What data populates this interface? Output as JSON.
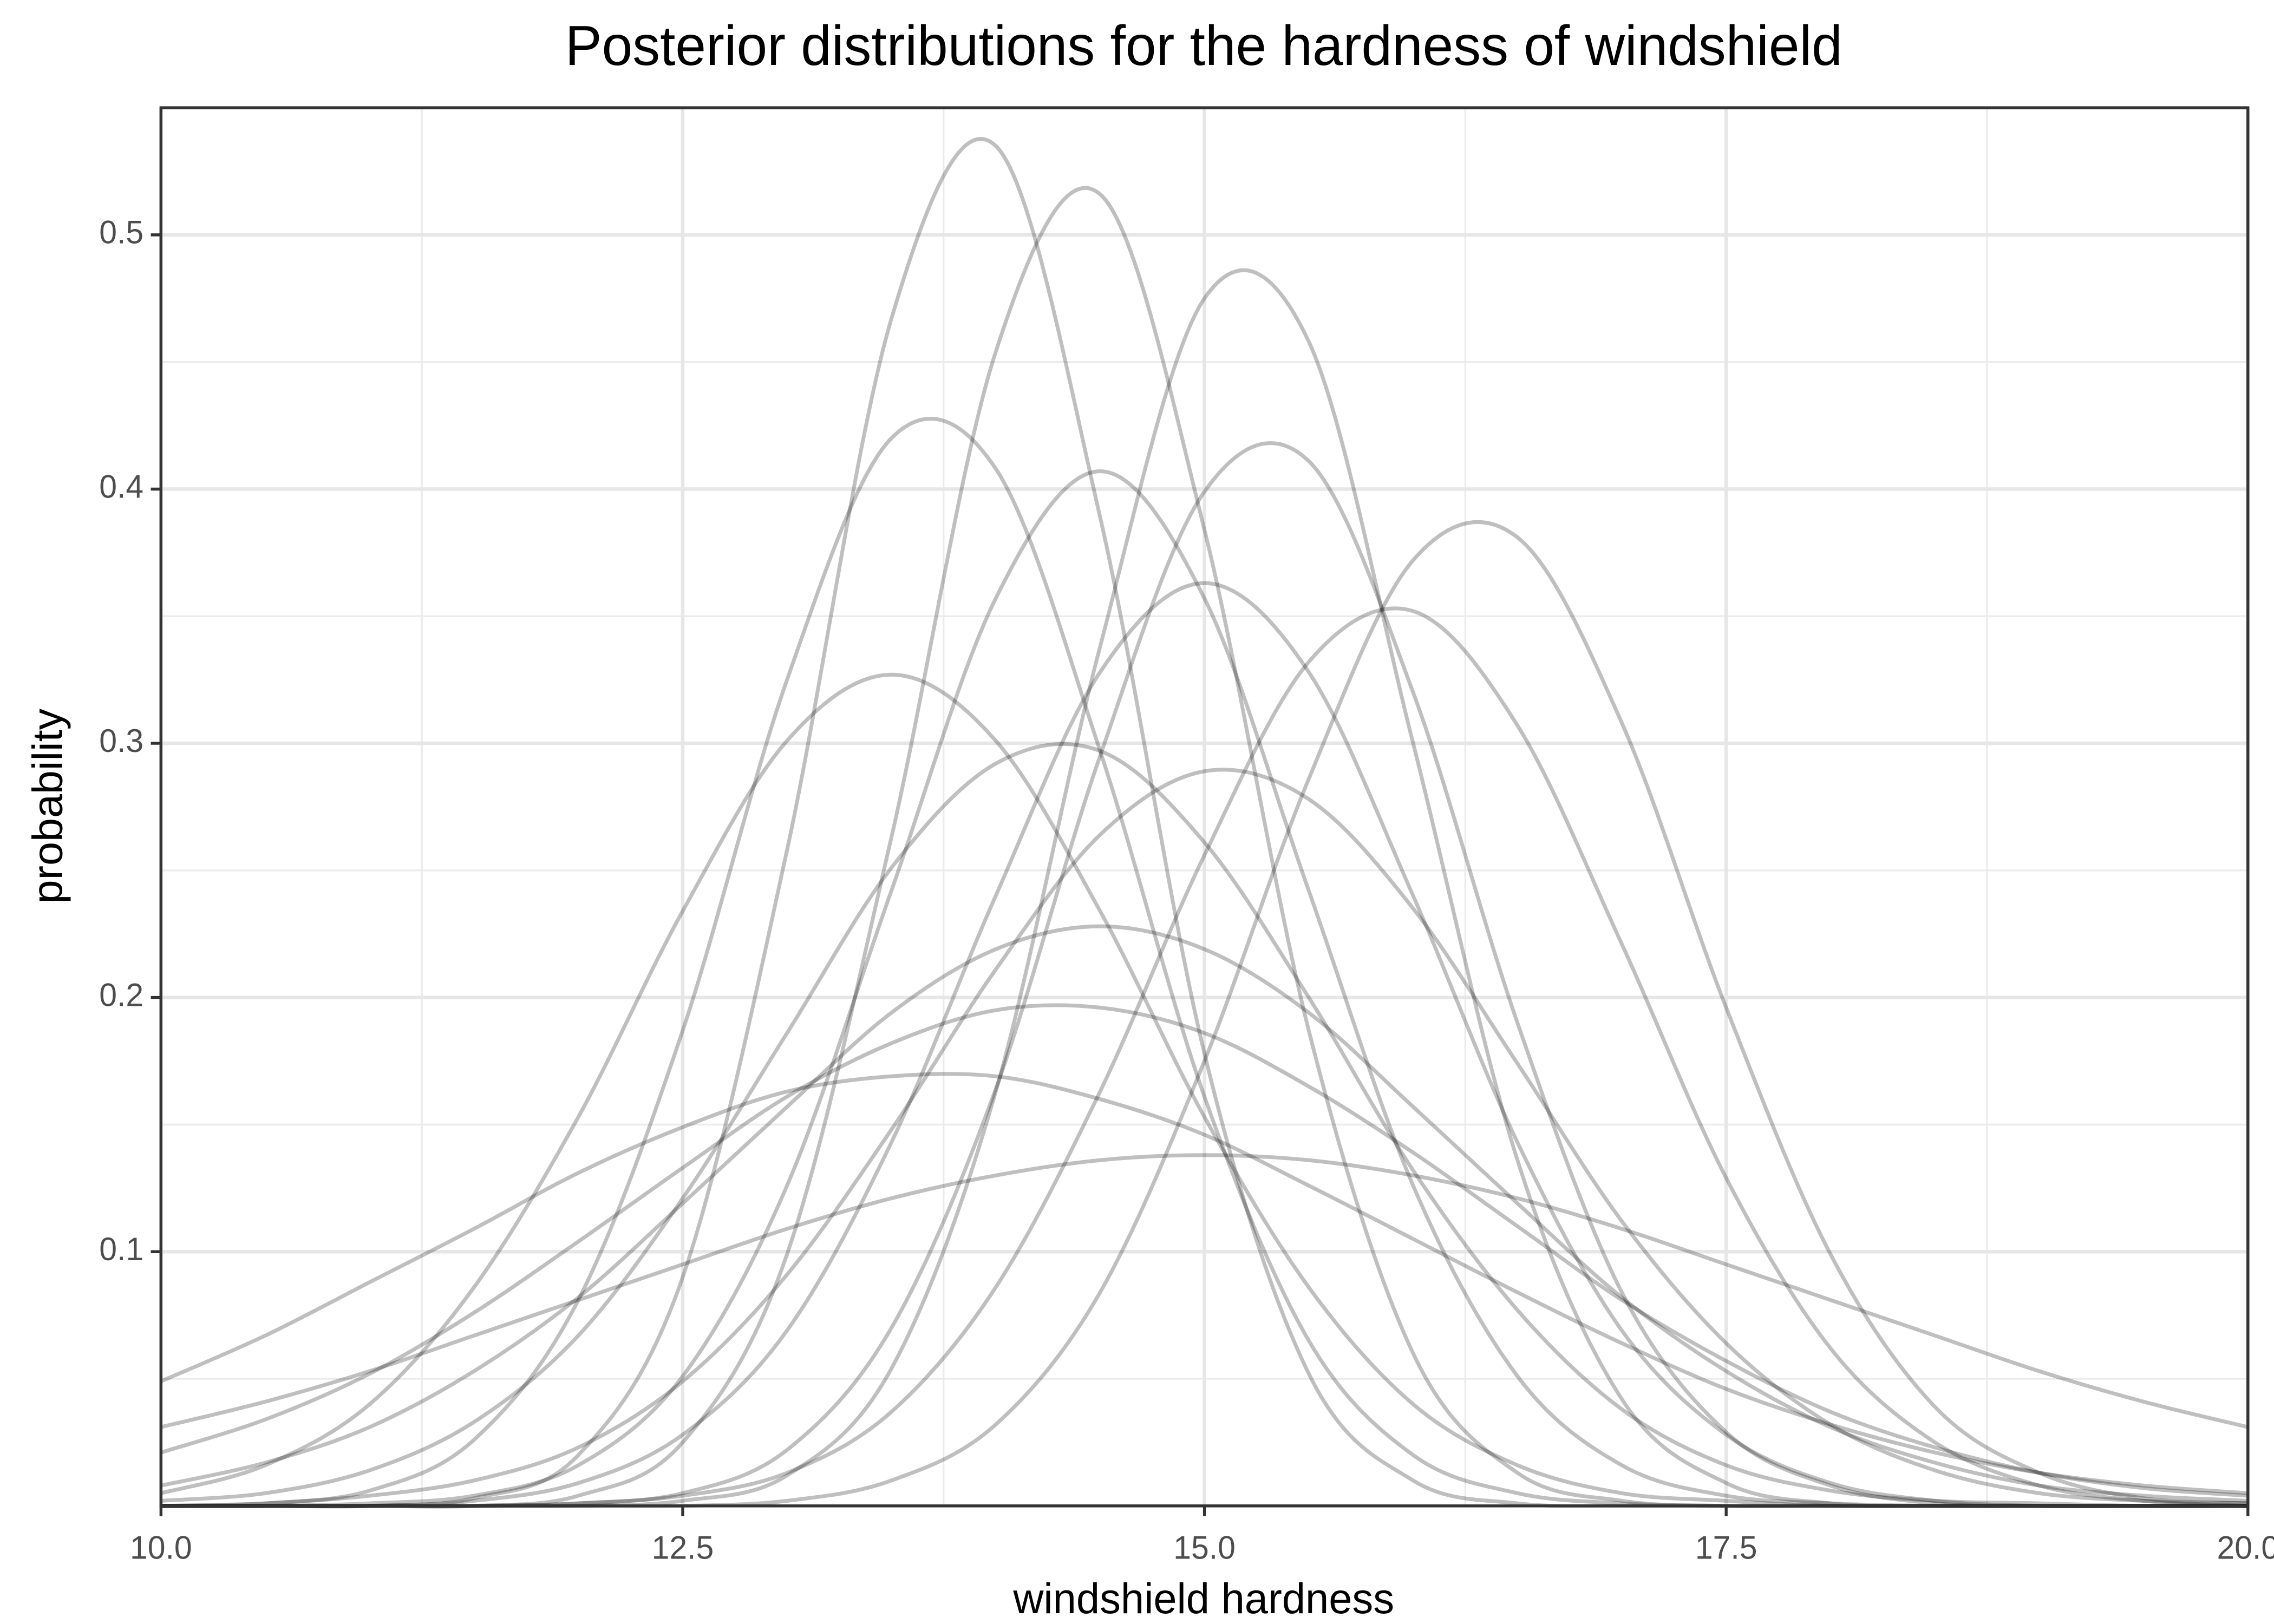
{
  "chart_data": {
    "type": "line",
    "title": "Posterior distributions for the hardness of windshield",
    "x_label": "windshield hardness",
    "y_label": "probability",
    "x": [
      10,
      10.5,
      11,
      11.5,
      12,
      12.5,
      13,
      13.5,
      14,
      14.5,
      15,
      15.5,
      16,
      16.5,
      17,
      17.5,
      18,
      18.5,
      19,
      19.5,
      20
    ],
    "xlim": [
      10,
      20
    ],
    "ylim": [
      0,
      0.55
    ],
    "xticks": [
      {
        "value": 10,
        "label": "10.0"
      },
      12.5,
      {
        "value": 15,
        "label": "15.0"
      },
      17.5,
      {
        "value": 20,
        "label": "20.0"
      }
    ],
    "yticks": [
      0.1,
      0.2,
      0.3,
      0.4,
      0.5
    ],
    "x_minor_ticks": [
      11.25,
      13.75,
      16.25,
      18.75
    ],
    "y_minor_ticks": [
      0.05,
      0.15,
      0.25,
      0.35,
      0.45
    ],
    "grid": true,
    "line_opacity": 0.25,
    "series": [
      {
        "color": "#000000",
        "values": [
          0,
          0,
          0,
          0.003,
          0.02,
          0.09,
          0.258,
          0.467,
          0.535,
          0.389,
          0.178,
          0.052,
          0.01,
          0.001,
          0,
          0,
          0,
          0,
          0,
          0,
          0
        ]
      },
      {
        "color": "#000000",
        "values": [
          0,
          0,
          0,
          0,
          0.004,
          0.025,
          0.099,
          0.263,
          0.454,
          0.516,
          0.384,
          0.187,
          0.06,
          0.013,
          0.002,
          0,
          0,
          0,
          0,
          0,
          0
        ]
      },
      {
        "color": "#000000",
        "values": [
          0,
          0,
          0,
          0,
          0,
          0.002,
          0.012,
          0.054,
          0.163,
          0.338,
          0.475,
          0.458,
          0.3,
          0.136,
          0.042,
          0.009,
          0.001,
          0,
          0,
          0,
          0
        ]
      },
      {
        "color": "#000000",
        "values": [
          0,
          0.001,
          0.006,
          0.026,
          0.081,
          0.187,
          0.325,
          0.42,
          0.408,
          0.297,
          0.161,
          0.065,
          0.02,
          0.005,
          0.001,
          0,
          0,
          0,
          0,
          0,
          0
        ]
      },
      {
        "color": "#000000",
        "values": [
          0,
          0,
          0,
          0,
          0,
          0,
          0.002,
          0.01,
          0.032,
          0.084,
          0.175,
          0.286,
          0.372,
          0.381,
          0.308,
          0.196,
          0.099,
          0.039,
          0.013,
          0.003,
          0.001
        ]
      },
      {
        "color": "#000000",
        "values": [
          0,
          0,
          0,
          0,
          0.001,
          0.005,
          0.022,
          0.07,
          0.164,
          0.295,
          0.399,
          0.411,
          0.32,
          0.19,
          0.084,
          0.029,
          0.008,
          0.001,
          0,
          0,
          0
        ]
      },
      {
        "color": "#000000",
        "values": [
          0,
          0,
          0.001,
          0.004,
          0.016,
          0.051,
          0.126,
          0.242,
          0.357,
          0.407,
          0.357,
          0.242,
          0.126,
          0.051,
          0.016,
          0.004,
          0.001,
          0,
          0,
          0,
          0
        ]
      },
      {
        "color": "#000000",
        "values": [
          0,
          0,
          0,
          0.002,
          0.009,
          0.028,
          0.069,
          0.143,
          0.24,
          0.328,
          0.363,
          0.328,
          0.24,
          0.143,
          0.069,
          0.028,
          0.009,
          0.002,
          0,
          0,
          0
        ]
      },
      {
        "color": "#000000",
        "values": [
          0.005,
          0.016,
          0.04,
          0.086,
          0.153,
          0.234,
          0.301,
          0.327,
          0.301,
          0.234,
          0.153,
          0.086,
          0.04,
          0.016,
          0.005,
          0.002,
          0,
          0,
          0,
          0,
          0
        ]
      },
      {
        "color": "#000000",
        "values": [
          0.002,
          0.005,
          0.014,
          0.033,
          0.067,
          0.121,
          0.186,
          0.251,
          0.292,
          0.297,
          0.261,
          0.2,
          0.132,
          0.077,
          0.038,
          0.016,
          0.006,
          0.002,
          0.001,
          0,
          0
        ]
      },
      {
        "color": "#000000",
        "values": [
          0,
          0.001,
          0.004,
          0.01,
          0.023,
          0.049,
          0.091,
          0.148,
          0.211,
          0.264,
          0.289,
          0.278,
          0.235,
          0.174,
          0.112,
          0.064,
          0.032,
          0.014,
          0.005,
          0.002,
          0.001
        ]
      },
      {
        "color": "#000000",
        "values": [
          0.008,
          0.017,
          0.031,
          0.053,
          0.082,
          0.119,
          0.157,
          0.194,
          0.219,
          0.228,
          0.219,
          0.194,
          0.157,
          0.119,
          0.082,
          0.053,
          0.031,
          0.017,
          0.008,
          0.004,
          0.002
        ]
      },
      {
        "color": "#000000",
        "values": [
          0.049,
          0.067,
          0.088,
          0.109,
          0.131,
          0.149,
          0.163,
          0.169,
          0.169,
          0.16,
          0.146,
          0.126,
          0.105,
          0.084,
          0.064,
          0.046,
          0.032,
          0.021,
          0.013,
          0.008,
          0.005
        ]
      },
      {
        "color": "#000000",
        "values": [
          0.031,
          0.041,
          0.053,
          0.067,
          0.081,
          0.095,
          0.109,
          0.121,
          0.13,
          0.136,
          0.138,
          0.136,
          0.13,
          0.121,
          0.109,
          0.095,
          0.081,
          0.067,
          0.053,
          0.041,
          0.031
        ]
      },
      {
        "color": "#000000",
        "values": [
          0.021,
          0.034,
          0.052,
          0.076,
          0.104,
          0.133,
          0.161,
          0.182,
          0.195,
          0.196,
          0.186,
          0.165,
          0.139,
          0.11,
          0.081,
          0.057,
          0.037,
          0.023,
          0.013,
          0.007,
          0.004
        ]
      },
      {
        "color": "#000000",
        "values": [
          0,
          0,
          0,
          0,
          0.001,
          0.004,
          0.013,
          0.037,
          0.086,
          0.163,
          0.256,
          0.332,
          0.352,
          0.307,
          0.221,
          0.129,
          0.062,
          0.025,
          0.008,
          0.002,
          0
        ]
      }
    ]
  }
}
